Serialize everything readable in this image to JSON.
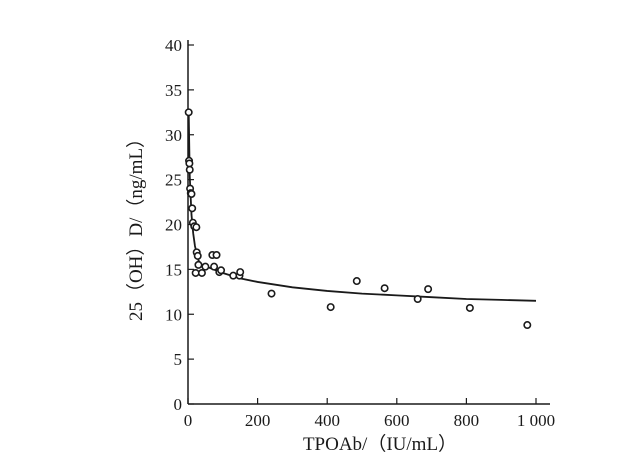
{
  "chart_data": {
    "type": "scatter",
    "xlabel": "TPOAb/（IU/mL）",
    "ylabel": "25（OH）D/（ng/mL）",
    "xlim": [
      0,
      1000
    ],
    "ylim": [
      0,
      40
    ],
    "x_ticks": [
      0,
      200,
      400,
      600,
      800,
      1000
    ],
    "x_tick_labels": [
      "0",
      "200",
      "400",
      "600",
      "800",
      "1 000"
    ],
    "y_ticks": [
      0,
      5,
      10,
      15,
      20,
      25,
      30,
      35,
      40
    ],
    "y_tick_labels": [
      "0",
      "5",
      "10",
      "15",
      "20",
      "25",
      "30",
      "35",
      "40"
    ],
    "grid": false,
    "points": [
      {
        "x": 2,
        "y": 32.5
      },
      {
        "x": 3,
        "y": 27.1
      },
      {
        "x": 4,
        "y": 26.8
      },
      {
        "x": 5,
        "y": 26.1
      },
      {
        "x": 6,
        "y": 24.0
      },
      {
        "x": 8,
        "y": 23.5
      },
      {
        "x": 10,
        "y": 23.4
      },
      {
        "x": 12,
        "y": 21.8
      },
      {
        "x": 14,
        "y": 20.2
      },
      {
        "x": 18,
        "y": 19.8
      },
      {
        "x": 24,
        "y": 19.7
      },
      {
        "x": 25,
        "y": 16.9
      },
      {
        "x": 28,
        "y": 16.5
      },
      {
        "x": 30,
        "y": 15.5
      },
      {
        "x": 22,
        "y": 14.6
      },
      {
        "x": 40,
        "y": 14.6
      },
      {
        "x": 50,
        "y": 15.3
      },
      {
        "x": 70,
        "y": 16.6
      },
      {
        "x": 82,
        "y": 16.6
      },
      {
        "x": 75,
        "y": 15.3
      },
      {
        "x": 90,
        "y": 14.7
      },
      {
        "x": 95,
        "y": 14.9
      },
      {
        "x": 130,
        "y": 14.3
      },
      {
        "x": 148,
        "y": 14.3
      },
      {
        "x": 150,
        "y": 14.7
      },
      {
        "x": 240,
        "y": 12.3
      },
      {
        "x": 410,
        "y": 10.8
      },
      {
        "x": 485,
        "y": 13.7
      },
      {
        "x": 565,
        "y": 12.9
      },
      {
        "x": 660,
        "y": 11.7
      },
      {
        "x": 690,
        "y": 12.8
      },
      {
        "x": 810,
        "y": 10.7
      },
      {
        "x": 975,
        "y": 8.8
      }
    ],
    "trendline": {
      "type": "power",
      "x": [
        2,
        5,
        10,
        15,
        20,
        30,
        40,
        60,
        80,
        100,
        150,
        200,
        300,
        400,
        500,
        600,
        700,
        800,
        900,
        1000
      ],
      "y": [
        32.5,
        25.4,
        21.1,
        19.0,
        17.6,
        16.0,
        15.5,
        15.2,
        14.9,
        14.6,
        14.0,
        13.6,
        13.0,
        12.6,
        12.3,
        12.1,
        11.9,
        11.7,
        11.6,
        11.5
      ]
    },
    "colors": {
      "axis": "#1a1a1a",
      "marker": "#1a1a1a",
      "line": "#1a1a1a"
    }
  }
}
